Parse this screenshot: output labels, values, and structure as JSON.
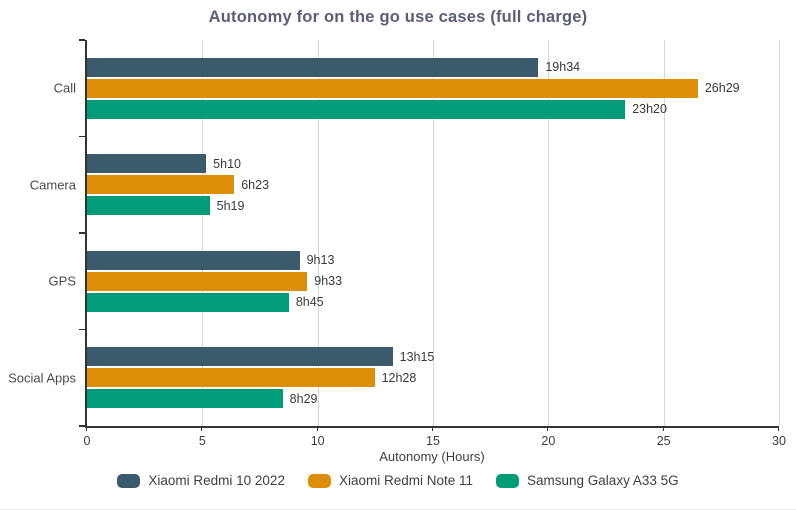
{
  "title": "Autonomy for on the go use cases (full charge)",
  "x_axis": {
    "label": "Autonomy (Hours)",
    "min": 0,
    "max": 30,
    "ticks": [
      "0",
      "5",
      "10",
      "15",
      "20",
      "25",
      "30"
    ]
  },
  "colors": {
    "series1": "#3b5a6c",
    "series2": "#dd8e08",
    "series3": "#009c77",
    "gridline": "#d6d6d6",
    "axis": "#333333",
    "title_text": "#5a5e79"
  },
  "chart_data": {
    "type": "bar",
    "orientation": "horizontal",
    "title": "Autonomy for on the go use cases (full charge)",
    "xlabel": "Autonomy (Hours)",
    "ylabel": "",
    "xlim": [
      0,
      30
    ],
    "xticks": [
      0,
      5,
      10,
      15,
      20,
      25,
      30
    ],
    "grid": true,
    "legend_position": "bottom",
    "categories": [
      "Call",
      "Camera",
      "GPS",
      "Social Apps"
    ],
    "series": [
      {
        "name": "Xiaomi Redmi 10 2022",
        "color": "#3b5a6c",
        "values": [
          19.567,
          5.167,
          9.217,
          13.25
        ],
        "labels": [
          "19h34",
          "5h10",
          "9h13",
          "13h15"
        ]
      },
      {
        "name": "Xiaomi Redmi Note 11",
        "color": "#dd8e08",
        "values": [
          26.483,
          6.383,
          9.55,
          12.467
        ],
        "labels": [
          "26h29",
          "6h23",
          "9h33",
          "12h28"
        ]
      },
      {
        "name": "Samsung Galaxy A33 5G",
        "color": "#009c77",
        "values": [
          23.333,
          5.317,
          8.75,
          8.483
        ],
        "labels": [
          "23h20",
          "5h19",
          "8h45",
          "8h29"
        ]
      }
    ]
  }
}
